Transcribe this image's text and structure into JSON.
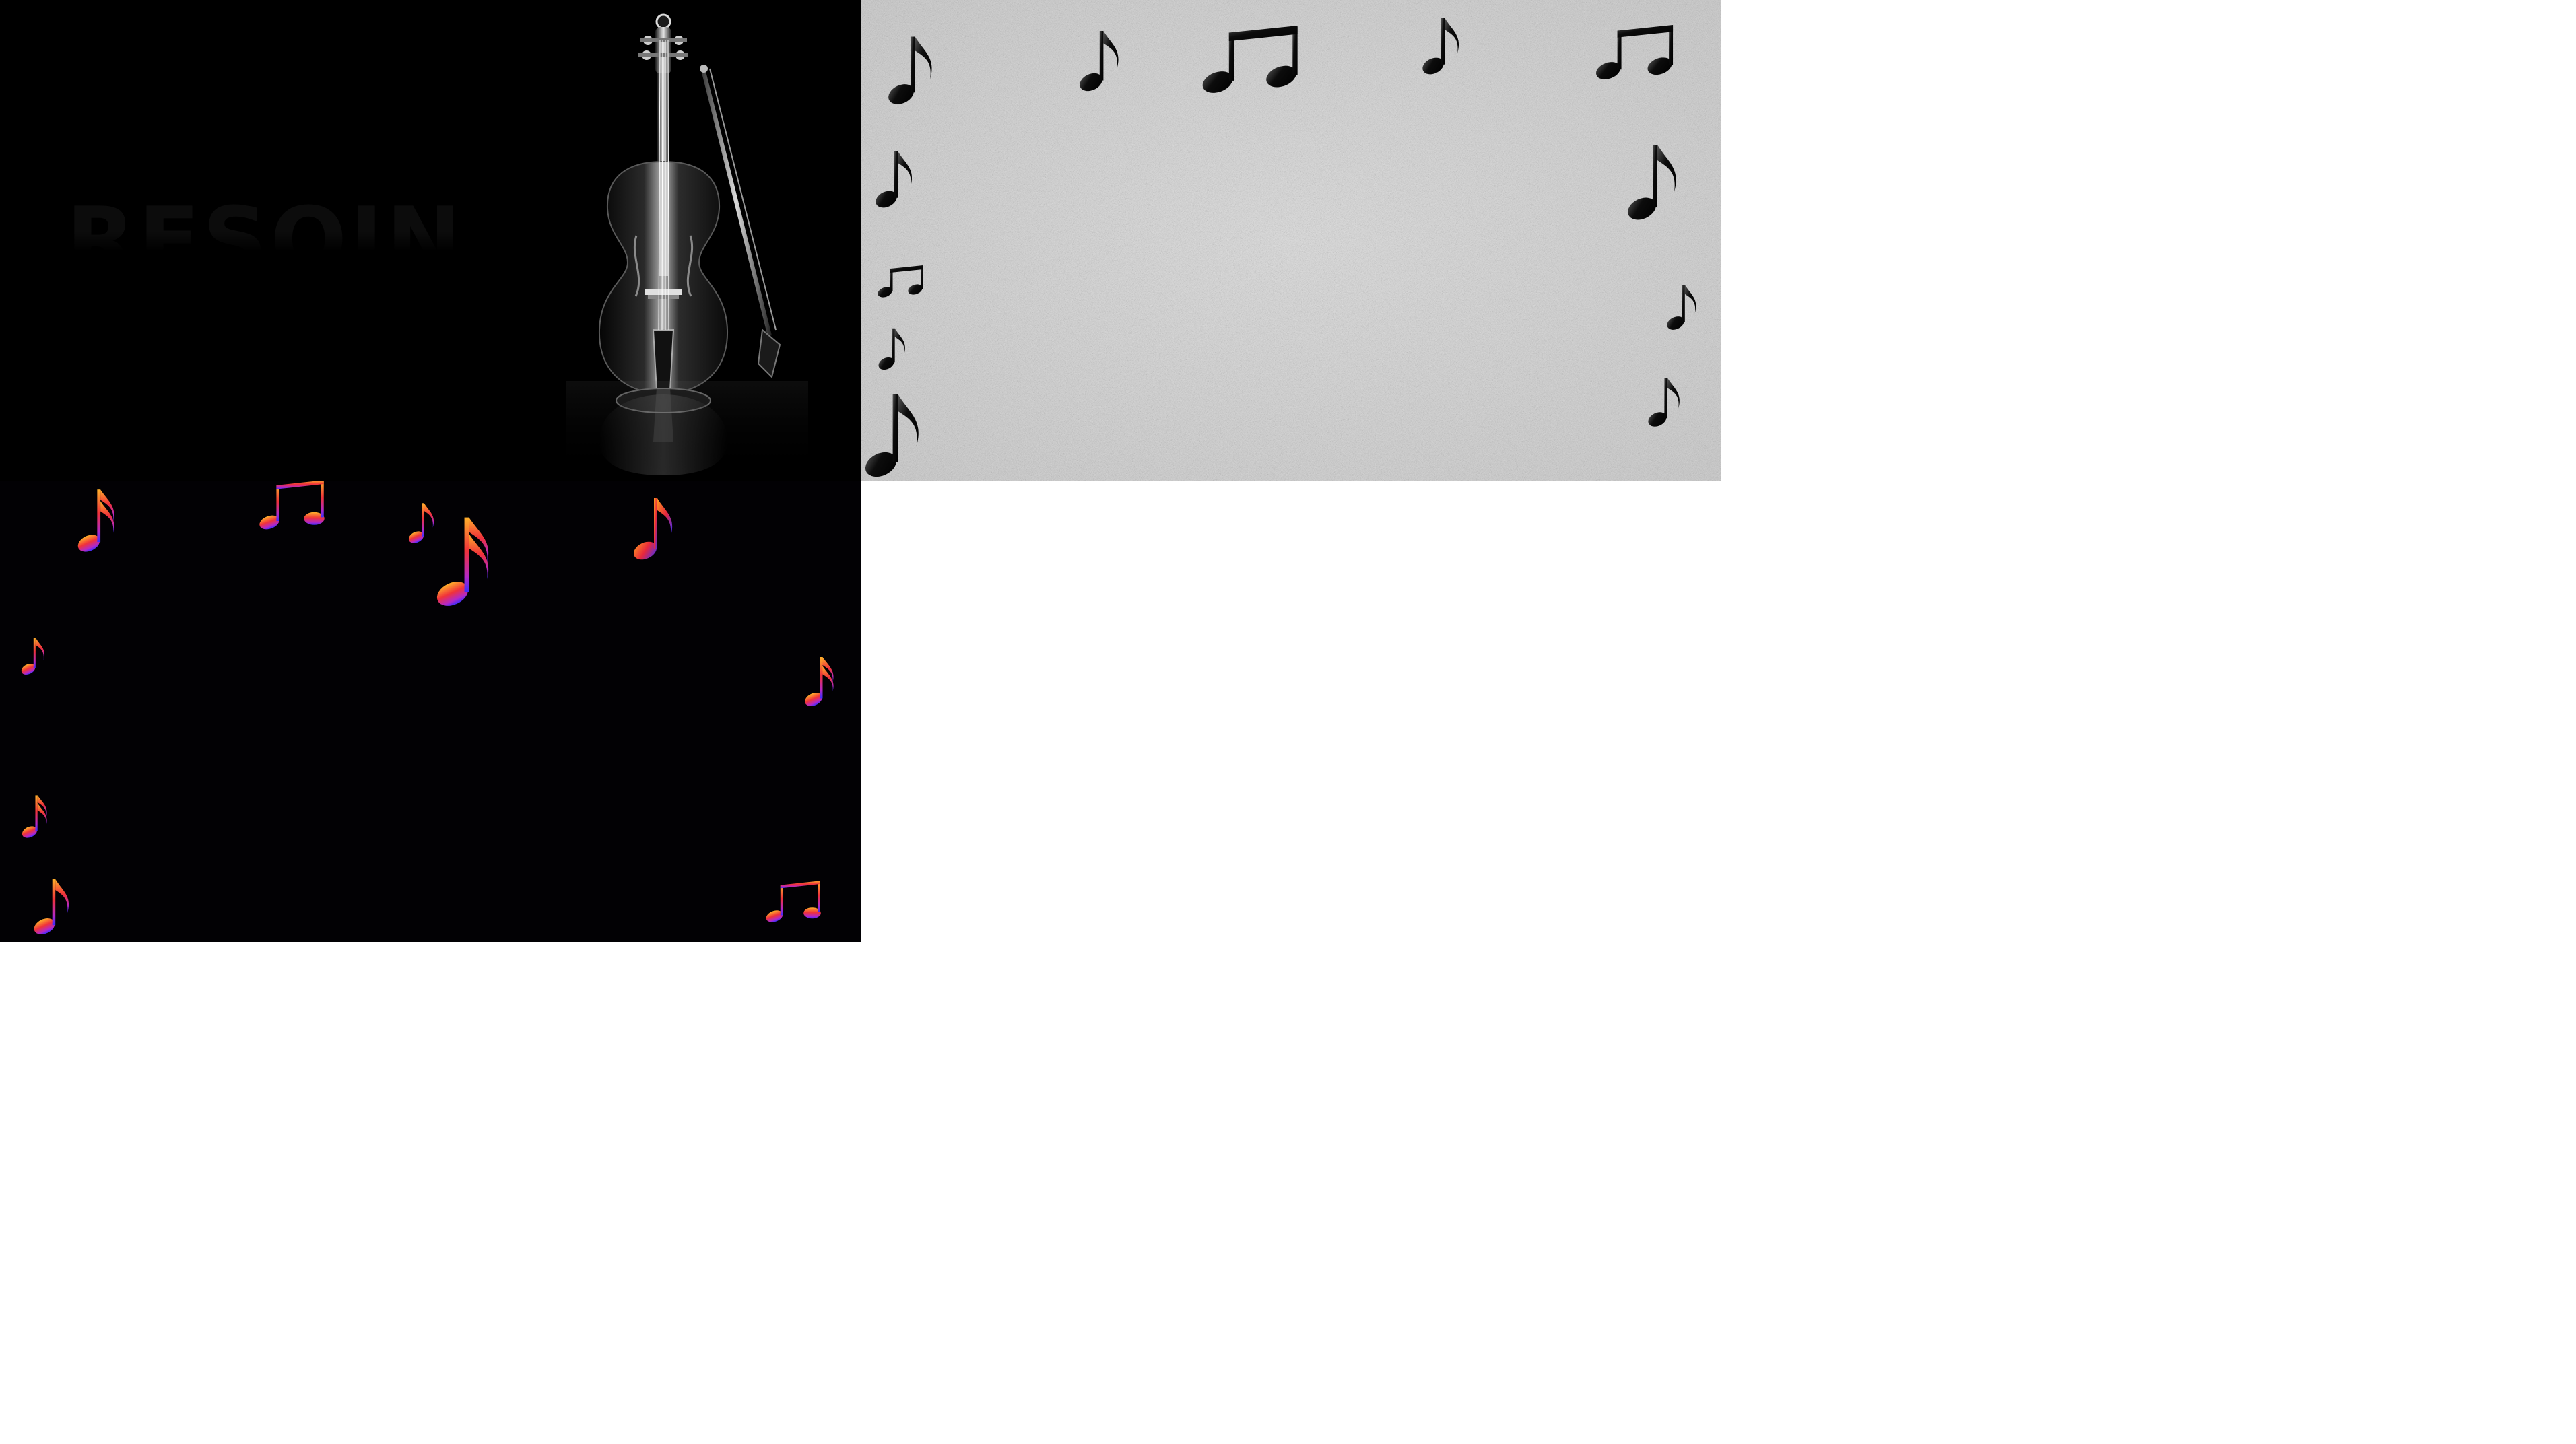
{
  "panels": {
    "violin": {
      "background": "#000000",
      "ghost_text": "RESOIN",
      "image": "violin-with-bow"
    },
    "paper": {
      "background": "#d4d4d4",
      "texture": "grey-noise",
      "note_color": "#111111",
      "image": "black-music-notes-border"
    },
    "color_notes": {
      "background": "#020104",
      "gradient": [
        "#ff9a1f",
        "#e8283c",
        "#3a2dff"
      ],
      "image": "rainbow-music-notes-border"
    }
  }
}
